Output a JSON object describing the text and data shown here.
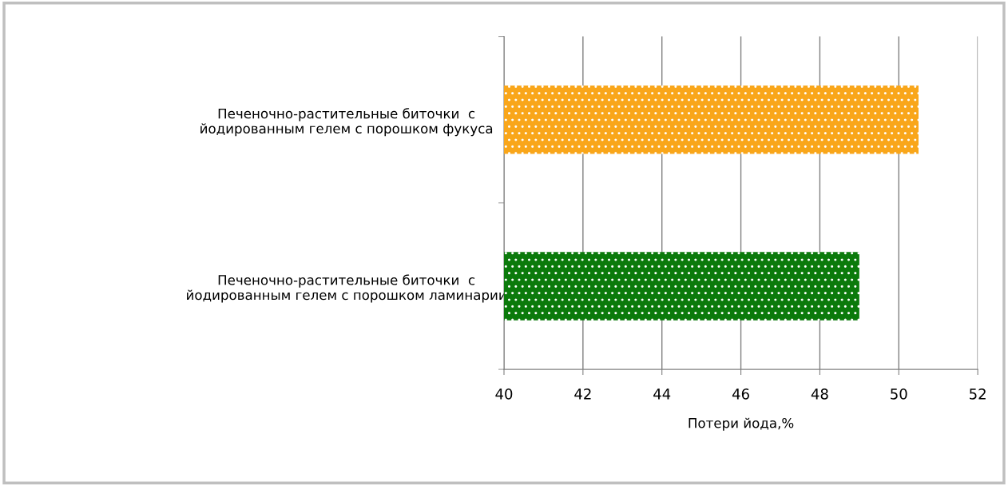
{
  "chart_data": {
    "type": "bar",
    "orientation": "horizontal",
    "xlabel": "Потери йода,%",
    "categories": [
      "Печеночно-растительные биточки  с\nйодированным гелем с порошком фукуса",
      "Печеночно-растительные биточки  с\nйодированным гелем с порошком ламинарии"
    ],
    "values": [
      50.5,
      49.0
    ],
    "colors": [
      "#f9a61a",
      "#0b7a0b"
    ],
    "xlim": [
      40,
      52
    ],
    "xticks": [
      40,
      42,
      44,
      46,
      48,
      50,
      52
    ],
    "grid": "x",
    "legend": false
  }
}
